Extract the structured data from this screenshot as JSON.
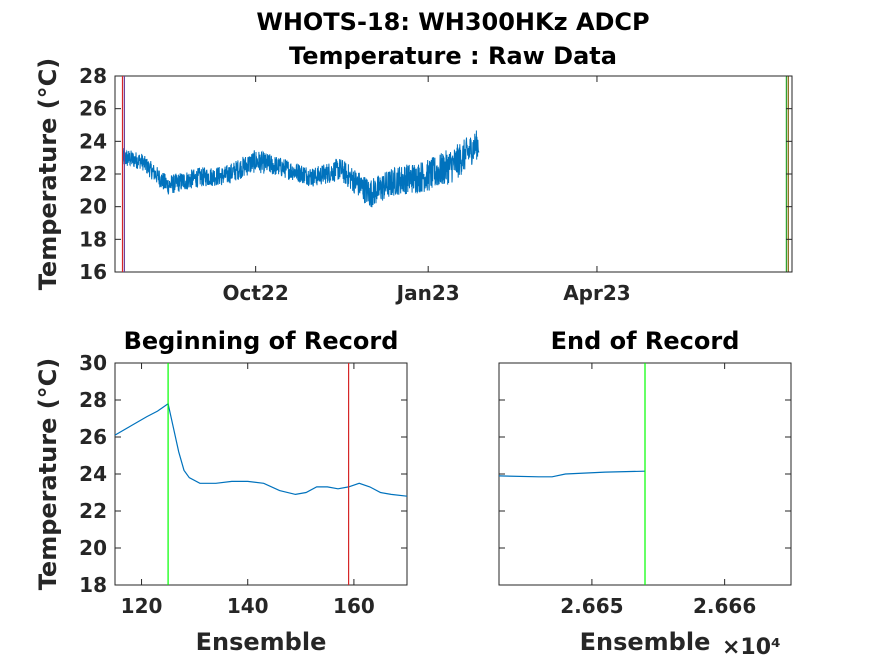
{
  "chart_data": [
    {
      "type": "line",
      "panel": "top",
      "title": "WHOTS-18: WH300HKz ADCP",
      "subtitle": "Temperature : Raw Data",
      "ylabel": "Temperature (°C)",
      "xlabel": "",
      "ylim": [
        16,
        28
      ],
      "yticks": [
        16,
        18,
        20,
        22,
        24,
        26,
        28
      ],
      "xticks": [
        "Oct22",
        "Jan23",
        "Apr23"
      ],
      "xrange": [
        "2022-07-18",
        "2023-07-14"
      ],
      "series": [
        {
          "color": "#0072bd",
          "x": [
            "2022-07-22",
            "2022-08-01",
            "2022-08-15",
            "2022-09-01",
            "2022-09-15",
            "2022-10-01",
            "2022-10-15",
            "2022-11-01",
            "2022-11-15",
            "2022-12-01",
            "2022-12-15",
            "2023-01-01",
            "2023-01-15",
            "2023-01-28"
          ],
          "y": [
            23.0,
            22.8,
            21.3,
            21.8,
            21.9,
            22.8,
            22.4,
            21.8,
            22.3,
            20.8,
            21.6,
            21.9,
            22.6,
            23.9
          ],
          "spread": [
            0.6,
            0.5,
            0.6,
            0.6,
            0.6,
            0.7,
            0.6,
            0.6,
            0.7,
            0.9,
            0.9,
            1.0,
            1.1,
            0.9
          ]
        }
      ],
      "vlines": [
        {
          "x": "2022-07-22",
          "color": "#d62728"
        },
        {
          "x": "2022-07-23",
          "color": "#6a3d9a"
        },
        {
          "x": "2023-07-11",
          "color": "#2ca02c"
        },
        {
          "x": "2023-07-12",
          "color": "#7a5c00"
        }
      ]
    },
    {
      "type": "line",
      "panel": "bottom-left",
      "title": "Beginning of Record",
      "xlabel": "Ensemble",
      "ylabel": "Temperature (°C)",
      "xlim": [
        115,
        170
      ],
      "ylim": [
        18,
        30
      ],
      "xticks": [
        120,
        140,
        160
      ],
      "yticks": [
        18,
        20,
        22,
        24,
        26,
        28,
        30
      ],
      "series": [
        {
          "color": "#0072bd",
          "x": [
            115,
            118,
            121,
            123,
            125,
            126,
            127,
            128,
            129,
            131,
            134,
            137,
            140,
            143,
            146,
            149,
            151,
            153,
            155,
            157,
            159,
            161,
            163,
            165,
            167,
            170
          ],
          "y": [
            26.1,
            26.6,
            27.1,
            27.4,
            27.8,
            26.5,
            25.2,
            24.2,
            23.8,
            23.5,
            23.5,
            23.6,
            23.6,
            23.5,
            23.1,
            22.9,
            23.0,
            23.3,
            23.3,
            23.2,
            23.3,
            23.5,
            23.3,
            23.0,
            22.9,
            22.8
          ]
        }
      ],
      "vlines": [
        {
          "x": 125,
          "color": "#00ff00"
        },
        {
          "x": 159,
          "color": "#d62728"
        }
      ]
    },
    {
      "type": "line",
      "panel": "bottom-right",
      "title": "End of Record",
      "xlabel": "Ensemble",
      "xscale_label": "×10⁴",
      "xlim": [
        26643,
        26665
      ],
      "ylim": [
        18,
        30
      ],
      "xticks": [
        {
          "value": 26650,
          "label": "2.665"
        },
        {
          "value": 26660,
          "label": "2.666"
        }
      ],
      "yticks": [
        18,
        20,
        22,
        24,
        26,
        28,
        30
      ],
      "series": [
        {
          "color": "#0072bd",
          "x": [
            26643,
            26646,
            26647,
            26648,
            26651,
            26654
          ],
          "y": [
            23.9,
            23.85,
            23.85,
            24.0,
            24.1,
            24.15
          ]
        }
      ],
      "vlines": [
        {
          "x": 26654,
          "color": "#00ff00"
        }
      ]
    }
  ]
}
